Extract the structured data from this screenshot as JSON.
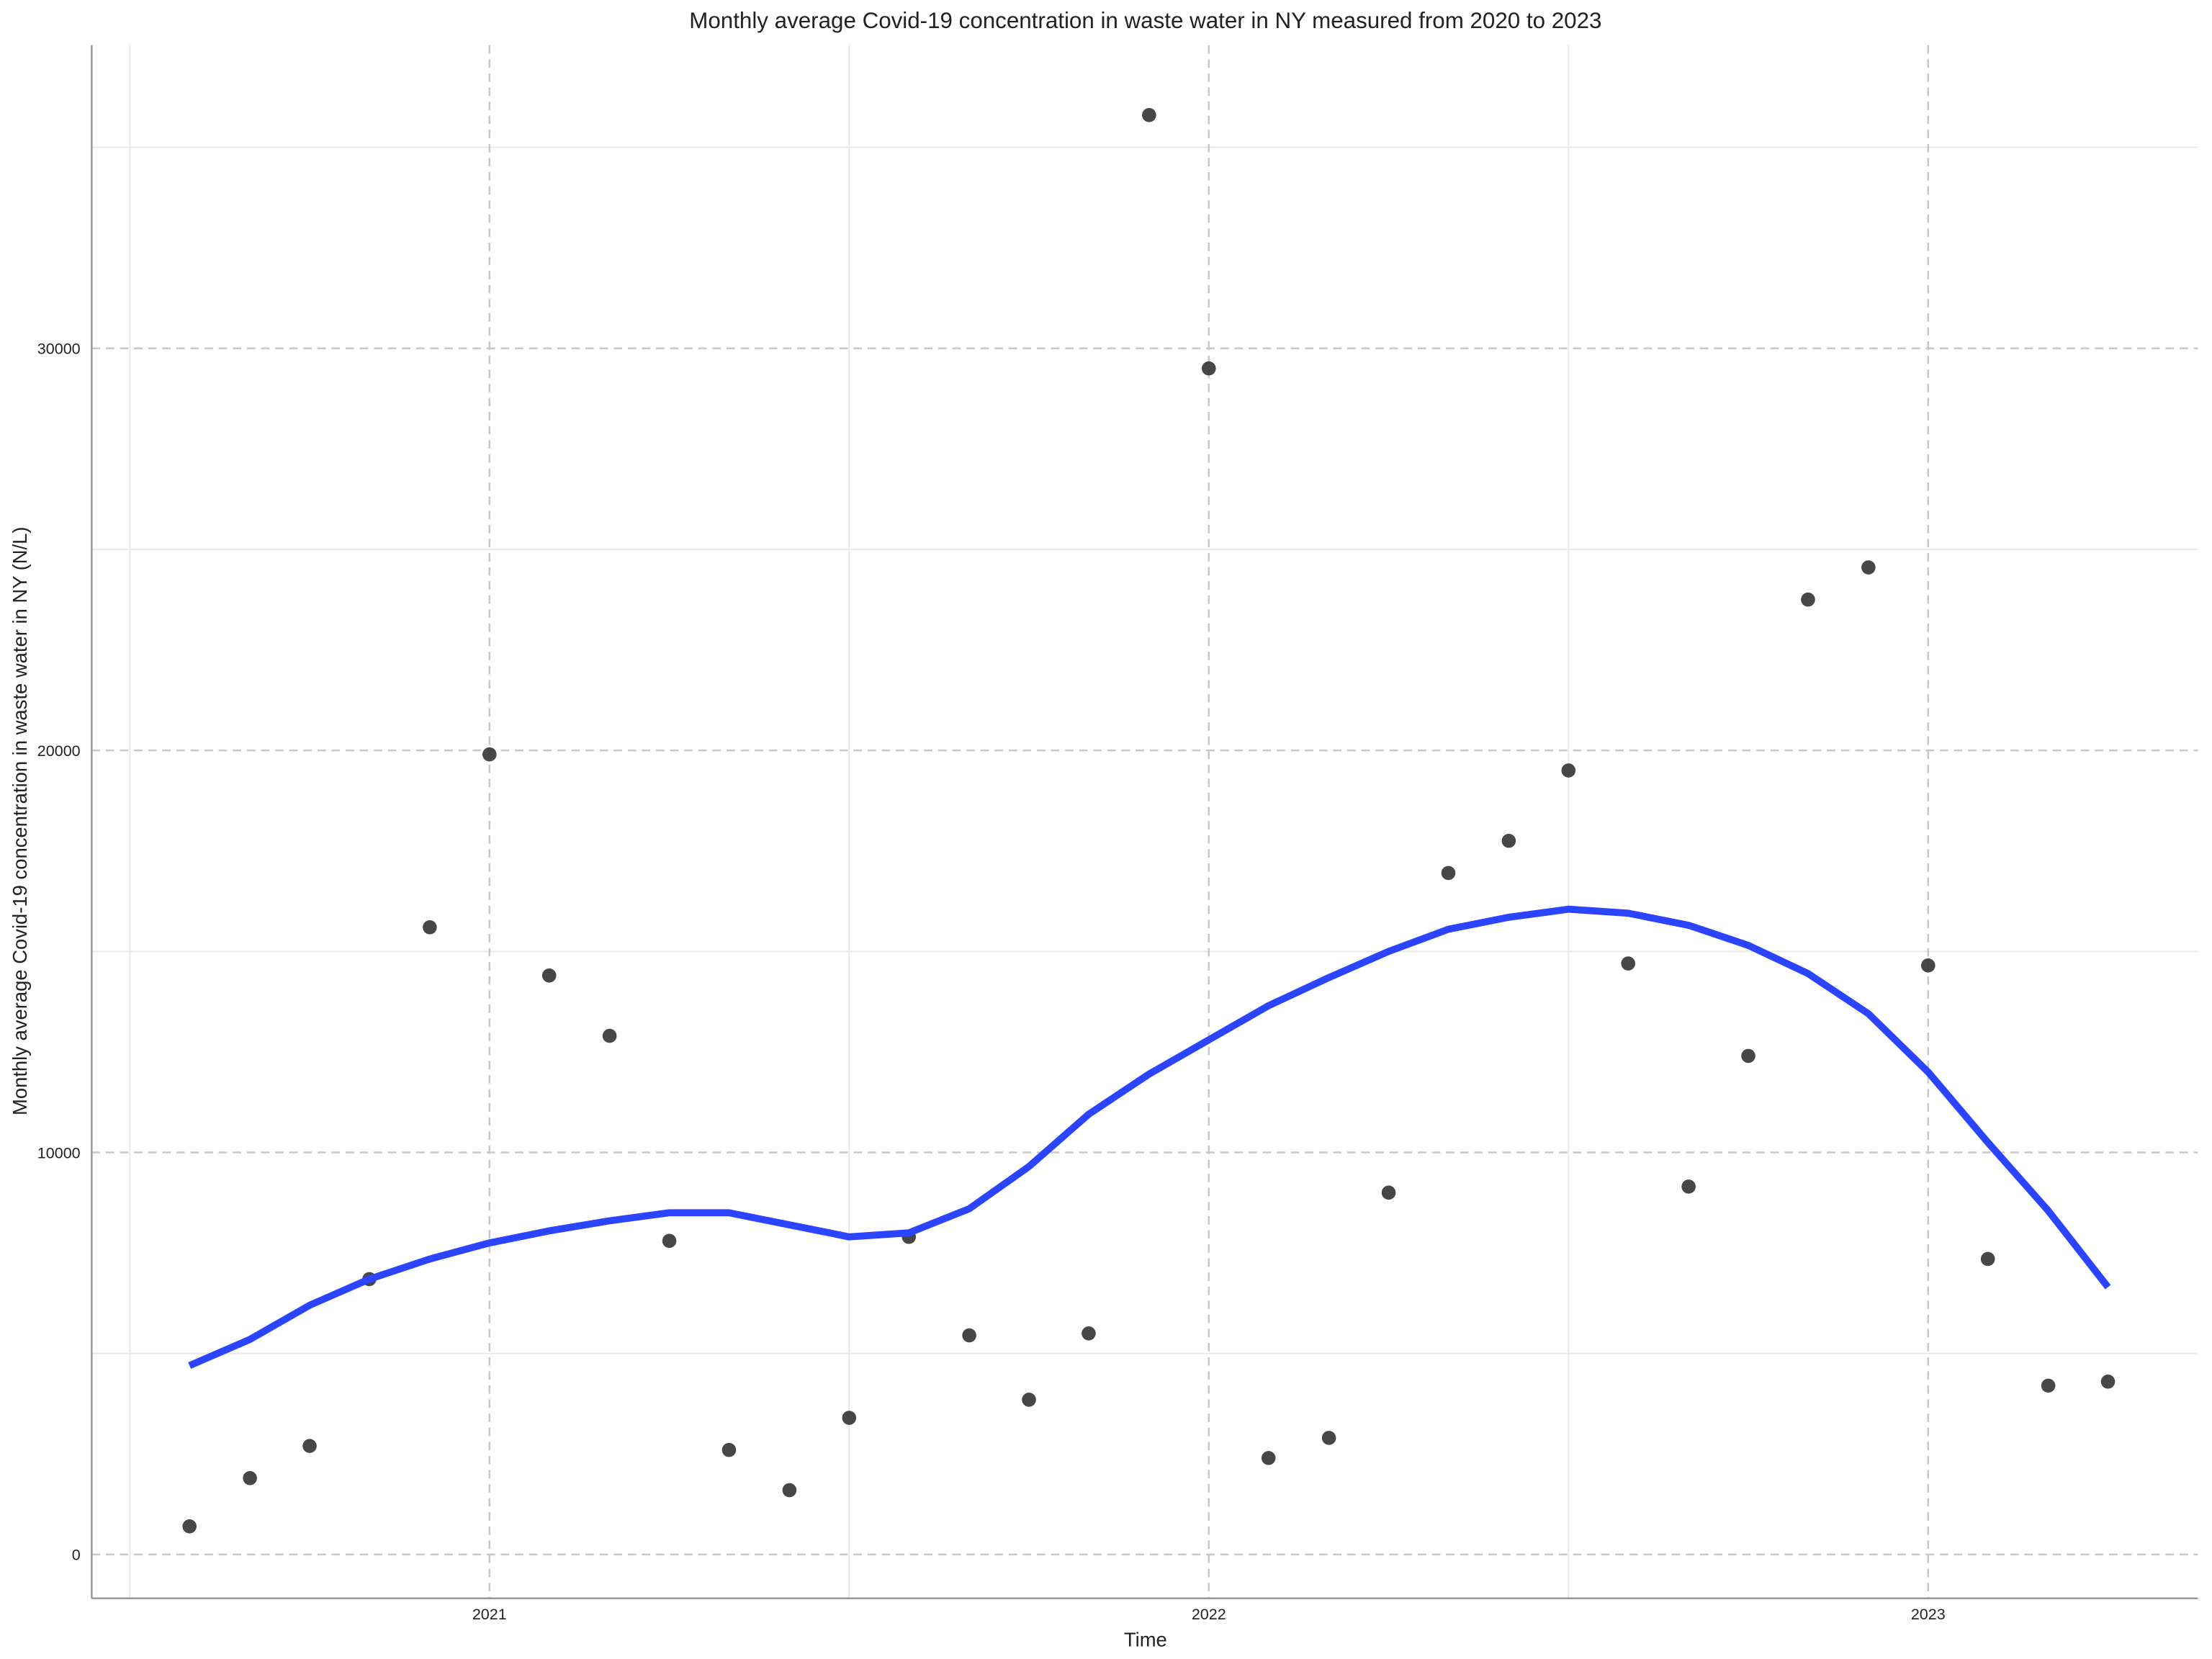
{
  "chart_data": {
    "type": "scatter",
    "title": "Monthly average Covid-19 concentration in waste water in NY measured from 2020 to 2023",
    "x_label": "Time",
    "y_label": "Monthly average Covid-19 concentration in waste water in NY (N/L)",
    "x": [
      2020.583,
      2020.667,
      2020.75,
      2020.833,
      2020.917,
      2021.0,
      2021.083,
      2021.167,
      2021.25,
      2021.333,
      2021.417,
      2021.5,
      2021.583,
      2021.667,
      2021.75,
      2021.833,
      2021.917,
      2022.0,
      2022.083,
      2022.167,
      2022.25,
      2022.333,
      2022.417,
      2022.5,
      2022.583,
      2022.667,
      2022.75,
      2022.833,
      2022.917,
      2023.0,
      2023.083,
      2023.167,
      2023.25
    ],
    "series": [
      {
        "type": "scatter",
        "color": "#333333",
        "values": [
          700,
          1900,
          2700,
          6850,
          15600,
          19900,
          14400,
          12900,
          7800,
          2600,
          1600,
          3400,
          7900,
          5450,
          3850,
          5500,
          35800,
          29500,
          2400,
          2900,
          9000,
          16950,
          17750,
          19500,
          14700,
          9150,
          12400,
          23750,
          24550,
          14650,
          7350,
          4200,
          4300
        ]
      },
      {
        "type": "line",
        "color": "#2a44ff",
        "values": [
          4700,
          5350,
          6200,
          6850,
          7350,
          7750,
          8050,
          8300,
          8500,
          8500,
          8200,
          7900,
          8000,
          8600,
          9650,
          10950,
          11950,
          12800,
          13650,
          14350,
          15000,
          15550,
          15850,
          16050,
          15950,
          15650,
          15150,
          14450,
          13450,
          12000,
          10250,
          8550,
          6650
        ]
      }
    ],
    "xlim": [
      2020.447,
      2023.375
    ],
    "ylim": [
      -1090,
      37540
    ],
    "xticks": [
      2021,
      2022,
      2023
    ],
    "yticks": [
      0,
      10000,
      20000,
      30000
    ],
    "minor_xticks": [
      2020.5,
      2021.5,
      2022.5
    ],
    "minor_yticks": [
      5000,
      15000,
      25000,
      35000
    ],
    "grid": true
  }
}
